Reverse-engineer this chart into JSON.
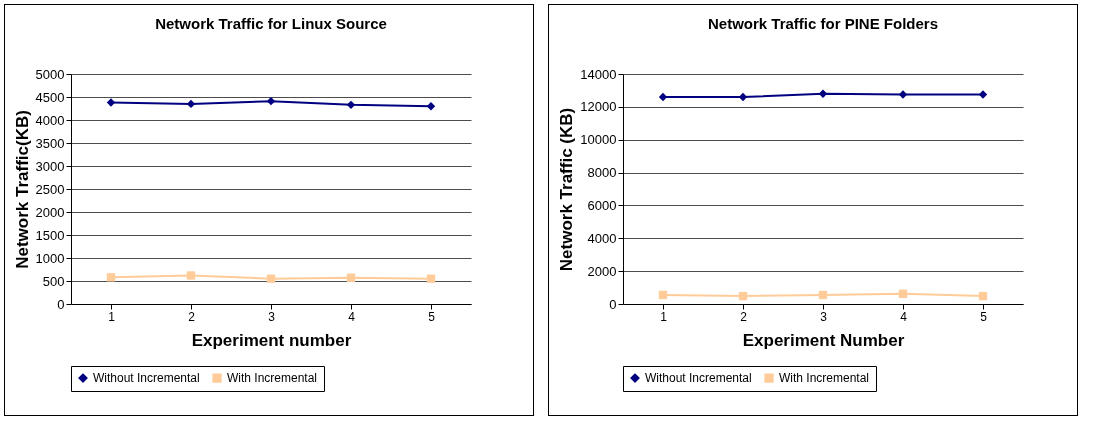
{
  "chart_data": [
    {
      "type": "line",
      "title": "Network Traffic for Linux Source",
      "xlabel": "Experiment number",
      "ylabel": "Network Traffic(KB)",
      "categories": [
        "1",
        "2",
        "3",
        "4",
        "5"
      ],
      "series": [
        {
          "name": "Without Incremental",
          "color": "#000080",
          "marker": "diamond",
          "values": [
            4380,
            4350,
            4410,
            4330,
            4300
          ]
        },
        {
          "name": "With Incremental",
          "color": "#ffcc99",
          "marker": "square",
          "values": [
            580,
            620,
            550,
            570,
            550
          ]
        }
      ],
      "ylim": [
        0,
        5000
      ],
      "yticks": [
        0,
        500,
        1000,
        1500,
        2000,
        2500,
        3000,
        3500,
        4000,
        4500,
        5000
      ],
      "grid": "y",
      "legend": "bottom"
    },
    {
      "type": "line",
      "title": "Network Traffic for PINE Folders",
      "xlabel": "Experiment Number",
      "ylabel": "Network Traffic (KB)",
      "categories": [
        "1",
        "2",
        "3",
        "4",
        "5"
      ],
      "series": [
        {
          "name": "Without Incremental",
          "color": "#000080",
          "marker": "diamond",
          "values": [
            12600,
            12600,
            12800,
            12750,
            12750
          ]
        },
        {
          "name": "With Incremental",
          "color": "#ffcc99",
          "marker": "square",
          "values": [
            550,
            480,
            550,
            620,
            480
          ]
        }
      ],
      "ylim": [
        0,
        14000
      ],
      "yticks": [
        0,
        2000,
        4000,
        6000,
        8000,
        10000,
        12000,
        14000
      ],
      "grid": "y",
      "legend": "bottom"
    }
  ]
}
